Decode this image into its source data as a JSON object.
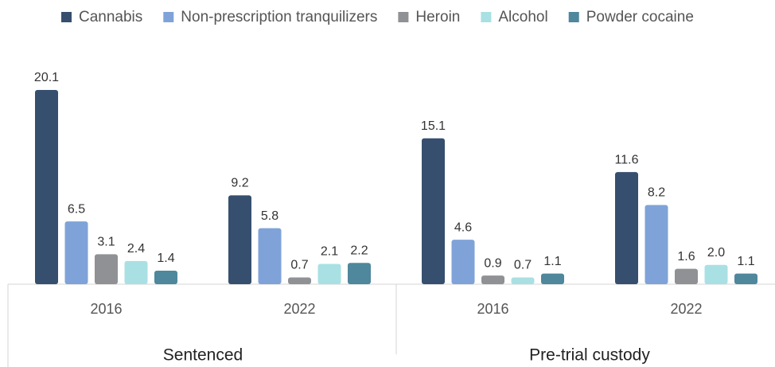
{
  "chart_data": {
    "type": "bar",
    "categories": [
      "2016",
      "2022",
      "2016",
      "2022"
    ],
    "groups": [
      {
        "name": "Sentenced",
        "categories": [
          0,
          1
        ]
      },
      {
        "name": "Pre-trial custody",
        "categories": [
          2,
          3
        ]
      }
    ],
    "series": [
      {
        "name": "Cannabis",
        "color": "#364f6f",
        "values": [
          20.1,
          9.2,
          15.1,
          11.6
        ]
      },
      {
        "name": "Non-prescription tranquilizers",
        "color": "#7fa3d8",
        "values": [
          6.5,
          5.8,
          4.6,
          8.2
        ]
      },
      {
        "name": "Heroin",
        "color": "#8f9194",
        "values": [
          3.1,
          0.7,
          0.9,
          1.6
        ]
      },
      {
        "name": "Alcohol",
        "color": "#a9e0e3",
        "values": [
          2.4,
          2.1,
          0.7,
          2.0
        ],
        "value_labels": [
          "2.4",
          "2.1",
          "0.7",
          "2.0"
        ]
      },
      {
        "name": "Powder cocaine",
        "color": "#4f879c",
        "values": [
          1.4,
          2.2,
          1.1,
          1.1
        ]
      }
    ],
    "legend": "top"
  }
}
